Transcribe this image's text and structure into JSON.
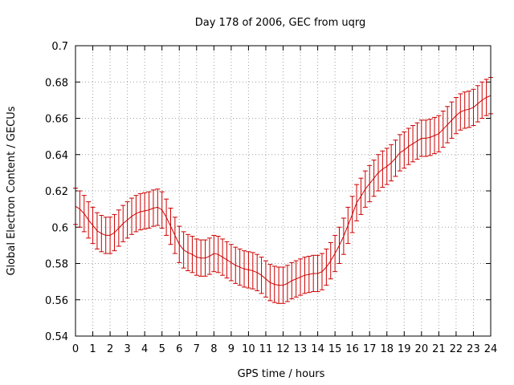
{
  "chart_data": {
    "type": "line",
    "title": "Day 178 of 2006, GEC from uqrg",
    "xlabel": "GPS time / hours",
    "ylabel": "Global Electron Content / GECUs",
    "xlim": [
      0,
      24
    ],
    "ylim": [
      0.54,
      0.7
    ],
    "x_ticks": [
      "0",
      "1",
      "2",
      "3",
      "4",
      "5",
      "6",
      "7",
      "8",
      "9",
      "10",
      "11",
      "12",
      "13",
      "14",
      "15",
      "16",
      "17",
      "18",
      "19",
      "20",
      "21",
      "22",
      "23",
      "24"
    ],
    "y_ticks": [
      "0.54",
      "0.56",
      "0.58",
      "0.6",
      "0.62",
      "0.64",
      "0.66",
      "0.68",
      "0.7"
    ],
    "grid": true,
    "legend": "none",
    "series_color": "#cc0000",
    "error_bar": 0.01,
    "series": [
      {
        "x": [
          0,
          0.25,
          0.5,
          0.75,
          1,
          1.25,
          1.5,
          1.75,
          2,
          2.25,
          2.5,
          2.75,
          3,
          3.25,
          3.5,
          3.75,
          4,
          4.25,
          4.5,
          4.75,
          5,
          5.25,
          5.5,
          5.75,
          6,
          6.25,
          6.5,
          6.75,
          7,
          7.25,
          7.5,
          7.75,
          8,
          8.25,
          8.5,
          8.75,
          9,
          9.25,
          9.5,
          9.75,
          10,
          10.25,
          10.5,
          10.75,
          11,
          11.25,
          11.5,
          11.75,
          12,
          12.25,
          12.5,
          12.75,
          13,
          13.25,
          13.5,
          13.75,
          14,
          14.25,
          14.5,
          14.75,
          15,
          15.25,
          15.5,
          15.75,
          16,
          16.25,
          16.5,
          16.75,
          17,
          17.25,
          17.5,
          17.75,
          18,
          18.25,
          18.5,
          18.75,
          19,
          19.25,
          19.5,
          19.75,
          20,
          20.25,
          20.5,
          20.75,
          21,
          21.25,
          21.5,
          21.75,
          22,
          22.25,
          22.5,
          22.75,
          23,
          23.25,
          23.5,
          23.75,
          24
        ],
        "values": [
          0.6115,
          0.61,
          0.6075,
          0.604,
          0.601,
          0.598,
          0.5965,
          0.5955,
          0.5955,
          0.597,
          0.5995,
          0.602,
          0.604,
          0.606,
          0.6075,
          0.6085,
          0.609,
          0.6095,
          0.6105,
          0.611,
          0.6095,
          0.6055,
          0.6005,
          0.5955,
          0.5905,
          0.5875,
          0.586,
          0.585,
          0.5835,
          0.583,
          0.583,
          0.584,
          0.5855,
          0.585,
          0.5835,
          0.582,
          0.5805,
          0.579,
          0.578,
          0.577,
          0.5765,
          0.576,
          0.575,
          0.5735,
          0.5715,
          0.5695,
          0.5685,
          0.568,
          0.568,
          0.569,
          0.5705,
          0.5715,
          0.5725,
          0.5735,
          0.574,
          0.5745,
          0.5745,
          0.5755,
          0.578,
          0.5815,
          0.5855,
          0.59,
          0.595,
          0.601,
          0.607,
          0.6135,
          0.617,
          0.621,
          0.624,
          0.627,
          0.63,
          0.632,
          0.6335,
          0.6355,
          0.638,
          0.641,
          0.6425,
          0.6445,
          0.646,
          0.6475,
          0.649,
          0.649,
          0.6495,
          0.6505,
          0.6515,
          0.654,
          0.6565,
          0.659,
          0.6615,
          0.6635,
          0.6645,
          0.665,
          0.666,
          0.668,
          0.67,
          0.6715,
          0.6725
        ]
      }
    ]
  }
}
